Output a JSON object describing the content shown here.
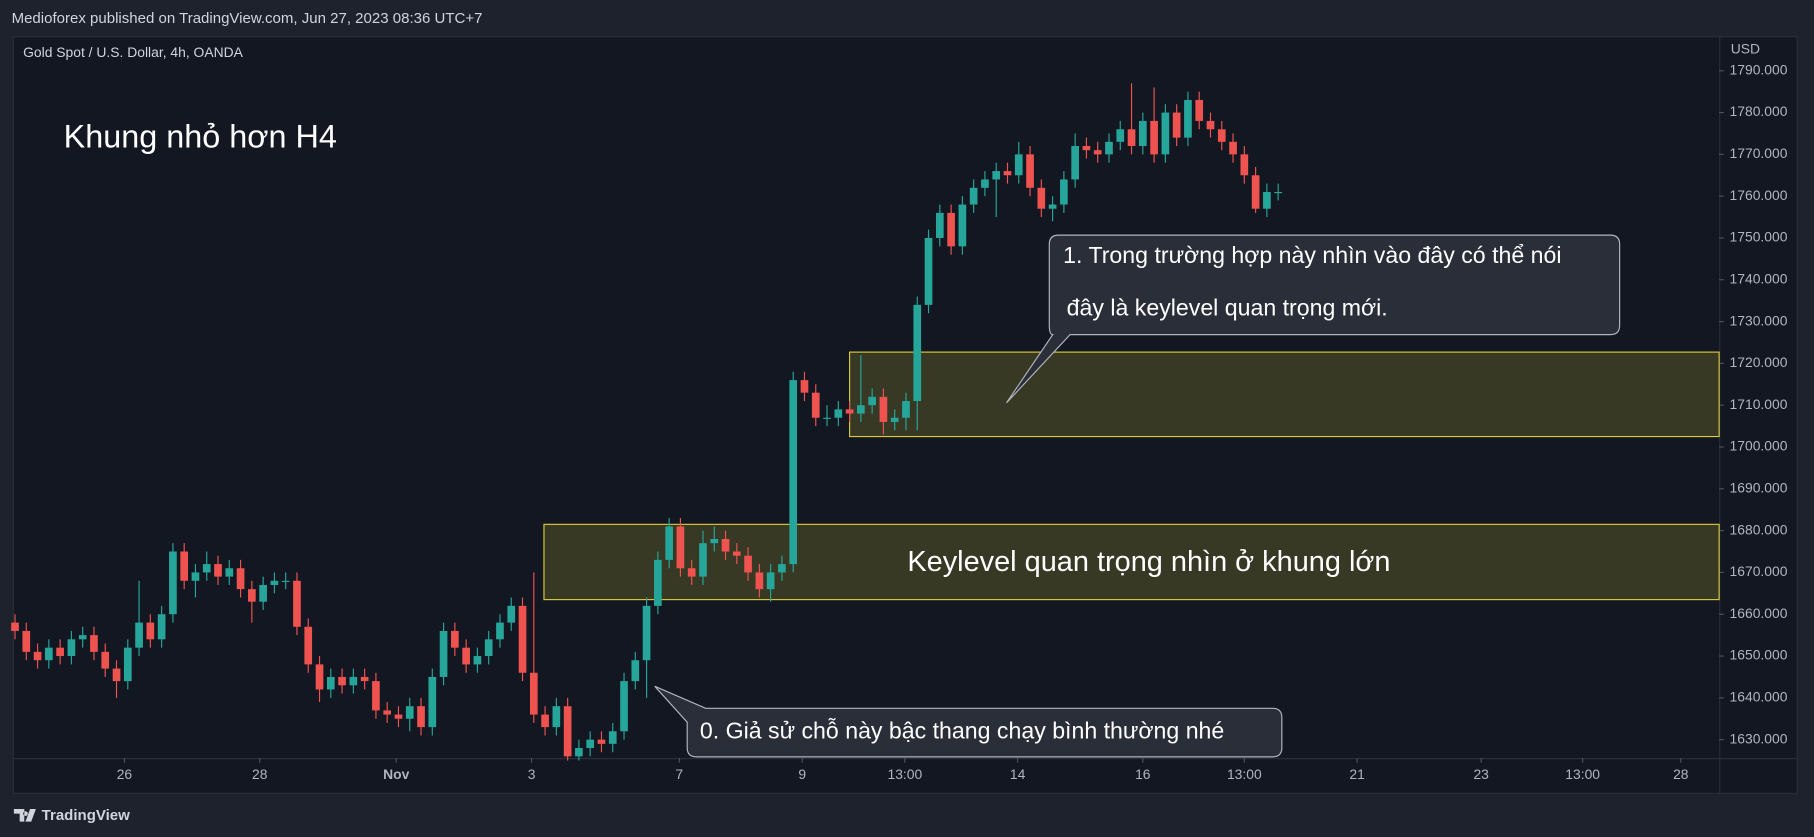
{
  "chart_data": {
    "type": "candlestick",
    "header": "Medioforex published on TradingView.com, Jun 27, 2023 08:36 UTC+7",
    "symbol": "Gold Spot / U.S. Dollar, 4h, OANDA",
    "currency": "USD",
    "brand": "TradingView",
    "title": "Khung nhỏ hơn H4",
    "up_color": "#26a69a",
    "down_color": "#ef5350",
    "grid": false,
    "xlim": [
      -0.1,
      151.1
    ],
    "ylim": [
      1625.6,
      1798.0
    ],
    "yticks": [
      {
        "value": 1630,
        "label": "1630.000"
      },
      {
        "value": 1640,
        "label": "1640.000"
      },
      {
        "value": 1650,
        "label": "1650.000"
      },
      {
        "value": 1660,
        "label": "1660.000"
      },
      {
        "value": 1670,
        "label": "1670.000"
      },
      {
        "value": 1680,
        "label": "1680.000"
      },
      {
        "value": 1690,
        "label": "1690.000"
      },
      {
        "value": 1700,
        "label": "1700.000"
      },
      {
        "value": 1710,
        "label": "1710.000"
      },
      {
        "value": 1720,
        "label": "1720.000"
      },
      {
        "value": 1730,
        "label": "1730.000"
      },
      {
        "value": 1740,
        "label": "1740.000"
      },
      {
        "value": 1750,
        "label": "1750.000"
      },
      {
        "value": 1760,
        "label": "1760.000"
      },
      {
        "value": 1770,
        "label": "1770.000"
      },
      {
        "value": 1780,
        "label": "1780.000"
      },
      {
        "value": 1790,
        "label": "1790.000"
      }
    ],
    "xticks": [
      {
        "value": 9.7,
        "label": "26"
      },
      {
        "value": 21.7,
        "label": "28"
      },
      {
        "value": 33.8,
        "label": "Nov"
      },
      {
        "value": 45.8,
        "label": "3"
      },
      {
        "value": 58.9,
        "label": "7"
      },
      {
        "value": 69.8,
        "label": "9"
      },
      {
        "value": 78.9,
        "label": "13:00"
      },
      {
        "value": 88.9,
        "label": "14"
      },
      {
        "value": 100,
        "label": "16"
      },
      {
        "value": 109,
        "label": "13:00"
      },
      {
        "value": 119,
        "label": "21"
      },
      {
        "value": 130,
        "label": "23"
      },
      {
        "value": 139,
        "label": "13:00"
      },
      {
        "value": 147.7,
        "label": "28"
      }
    ],
    "open": [
      1658,
      1656,
      1651,
      1649,
      1652,
      1650,
      1654,
      1655,
      1651,
      1647,
      1644,
      1652,
      1658,
      1654,
      1660,
      1675,
      1668,
      1670,
      1672,
      1669,
      1671,
      1666,
      1663,
      1667,
      1668,
      1668,
      1657,
      1648,
      1642,
      1645,
      1643,
      1645,
      1644,
      1637,
      1636,
      1635,
      1638,
      1633,
      1645,
      1656,
      1652,
      1648,
      1650,
      1654,
      1658,
      1662,
      1646,
      1636,
      1633,
      1638,
      1626,
      1628,
      1630,
      1629,
      1632,
      1644,
      1649,
      1662,
      1673,
      1681,
      1671,
      1669,
      1677,
      1678,
      1675,
      1674,
      1670,
      1666,
      1670,
      1672,
      1716,
      1713,
      1707,
      1707,
      1709,
      1708,
      1710,
      1712,
      1706,
      1707,
      1711,
      1734,
      1750,
      1756,
      1748,
      1758,
      1762,
      1764,
      1766,
      1765,
      1770,
      1762,
      1757,
      1758,
      1764,
      1772,
      1771,
      1770,
      1773,
      1776,
      1772,
      1778,
      1770,
      1780,
      1774,
      1783,
      1778,
      1776,
      1773,
      1770,
      1765,
      1757,
      1761
    ],
    "high": [
      1660,
      1658,
      1653,
      1654,
      1654,
      1656,
      1657,
      1657,
      1653,
      1649,
      1654,
      1668,
      1660,
      1662,
      1677,
      1677,
      1672,
      1675,
      1674,
      1673,
      1673,
      1668,
      1669,
      1670,
      1670,
      1670,
      1659,
      1650,
      1647,
      1647,
      1647,
      1647,
      1646,
      1639,
      1638,
      1640,
      1640,
      1647,
      1658,
      1658,
      1654,
      1652,
      1656,
      1660,
      1664,
      1664,
      1670,
      1638,
      1640,
      1640,
      1630,
      1632,
      1632,
      1634,
      1646,
      1651,
      1664,
      1675,
      1683,
      1683,
      1673,
      1680,
      1681,
      1680,
      1677,
      1676,
      1672,
      1672,
      1674,
      1718,
      1718,
      1715,
      1710,
      1711,
      1711,
      1722,
      1714,
      1714,
      1709,
      1713,
      1736,
      1752,
      1758,
      1758,
      1760,
      1764,
      1766,
      1768,
      1768,
      1773,
      1772,
      1764,
      1760,
      1766,
      1775,
      1774,
      1773,
      1775,
      1778,
      1787,
      1780,
      1786,
      1782,
      1782,
      1785,
      1785,
      1780,
      1778,
      1775,
      1772,
      1767,
      1763,
      1763
    ],
    "low": [
      1654,
      1649,
      1647,
      1647,
      1648,
      1648,
      1652,
      1649,
      1645,
      1640,
      1642,
      1650,
      1652,
      1652,
      1658,
      1666,
      1664,
      1668,
      1667,
      1667,
      1664,
      1658,
      1661,
      1665,
      1666,
      1655,
      1646,
      1639,
      1640,
      1641,
      1641,
      1642,
      1635,
      1634,
      1633,
      1632,
      1631,
      1631,
      1643,
      1650,
      1646,
      1646,
      1648,
      1652,
      1656,
      1644,
      1634,
      1631,
      1631,
      1625,
      1625,
      1626,
      1627,
      1627,
      1630,
      1642,
      1640,
      1660,
      1671,
      1669,
      1667,
      1667,
      1675,
      1673,
      1672,
      1668,
      1664,
      1663,
      1668,
      1670,
      1711,
      1705,
      1705,
      1705,
      1706,
      1706,
      1708,
      1703,
      1704,
      1704,
      1704,
      1732,
      1748,
      1746,
      1746,
      1756,
      1760,
      1755,
      1763,
      1763,
      1760,
      1755,
      1754,
      1756,
      1762,
      1769,
      1768,
      1768,
      1771,
      1770,
      1770,
      1768,
      1768,
      1772,
      1772,
      1776,
      1774,
      1771,
      1768,
      1763,
      1756,
      1755,
      1759
    ],
    "close": [
      1656,
      1651,
      1649,
      1652,
      1650,
      1654,
      1655,
      1651,
      1647,
      1644,
      1652,
      1658,
      1654,
      1660,
      1675,
      1668,
      1670,
      1672,
      1669,
      1671,
      1666,
      1663,
      1667,
      1668,
      1668,
      1657,
      1648,
      1642,
      1645,
      1643,
      1645,
      1644,
      1637,
      1636,
      1635,
      1638,
      1633,
      1645,
      1656,
      1652,
      1648,
      1650,
      1654,
      1658,
      1662,
      1646,
      1636,
      1633,
      1638,
      1626,
      1628,
      1630,
      1629,
      1632,
      1644,
      1649,
      1662,
      1673,
      1681,
      1671,
      1669,
      1677,
      1678,
      1675,
      1674,
      1670,
      1666,
      1670,
      1672,
      1716,
      1713,
      1707,
      1707,
      1709,
      1708,
      1710,
      1712,
      1706,
      1707,
      1711,
      1734,
      1750,
      1756,
      1748,
      1758,
      1762,
      1764,
      1766,
      1765,
      1770,
      1762,
      1757,
      1758,
      1764,
      1772,
      1771,
      1770,
      1773,
      1776,
      1772,
      1778,
      1770,
      1780,
      1774,
      1783,
      1778,
      1776,
      1773,
      1770,
      1765,
      1757,
      1761,
      1761
    ],
    "zones": [
      {
        "start": 74,
        "top": 1722.7,
        "bottom": 1702.5
      },
      {
        "start": 46.9,
        "top": 1681.5,
        "bottom": 1663.5,
        "label": "Keylevel quan trọng nhìn ở khung lớn"
      }
    ],
    "annotations": [
      {
        "lines": [
          "1. Trong trường hợp này nhìn vào đây có thể nói",
          "đây là keylevel quan trọng mới."
        ]
      },
      {
        "lines": [
          "0. Giả sử chỗ này bậc thang chạy bình thường nhé"
        ]
      }
    ]
  }
}
